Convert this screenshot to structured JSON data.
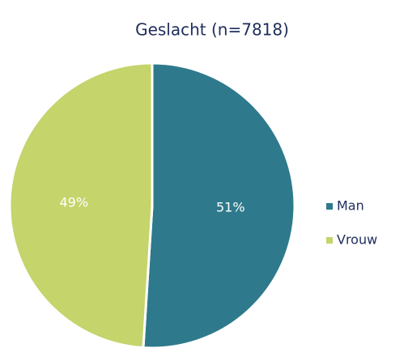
{
  "chart_data": {
    "type": "pie",
    "title": "Geslacht (n=7818)",
    "categories": [
      "Man",
      "Vrouw"
    ],
    "values": [
      51,
      49
    ],
    "value_labels": [
      "51%",
      "49%"
    ],
    "colors": [
      "#2e7a8c",
      "#c5d46b"
    ],
    "legend": "right"
  }
}
